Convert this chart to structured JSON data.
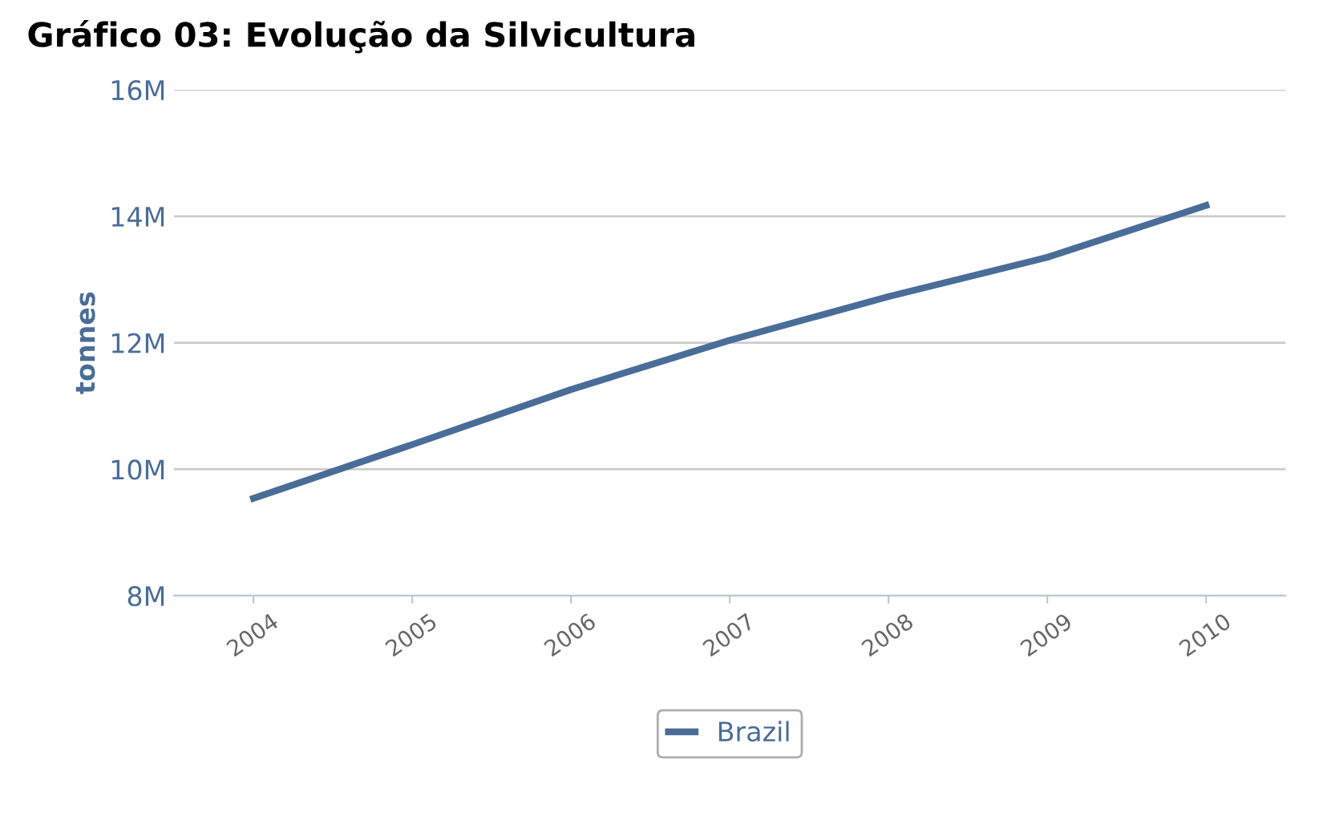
{
  "chart_data": {
    "type": "line",
    "title": "Gráfico 03: Evolução da Silvicultura",
    "ylabel": "tonnes",
    "categories": [
      "2004",
      "2005",
      "2006",
      "2007",
      "2008",
      "2009",
      "2010"
    ],
    "series": [
      {
        "name": "Brazil",
        "color": "#4a6d98",
        "values": [
          9540000,
          10390000,
          11260000,
          12040000,
          12730000,
          13350000,
          14170000
        ]
      }
    ],
    "ylim": [
      8000000,
      16000000
    ],
    "yticks": [
      {
        "value": 8000000,
        "label": "8M"
      },
      {
        "value": 10000000,
        "label": "10M"
      },
      {
        "value": 12000000,
        "label": "12M"
      },
      {
        "value": 14000000,
        "label": "14M"
      },
      {
        "value": 16000000,
        "label": "16M"
      }
    ],
    "grid": "y",
    "legend": "bottom",
    "marker": "none",
    "line_style": "solid"
  }
}
